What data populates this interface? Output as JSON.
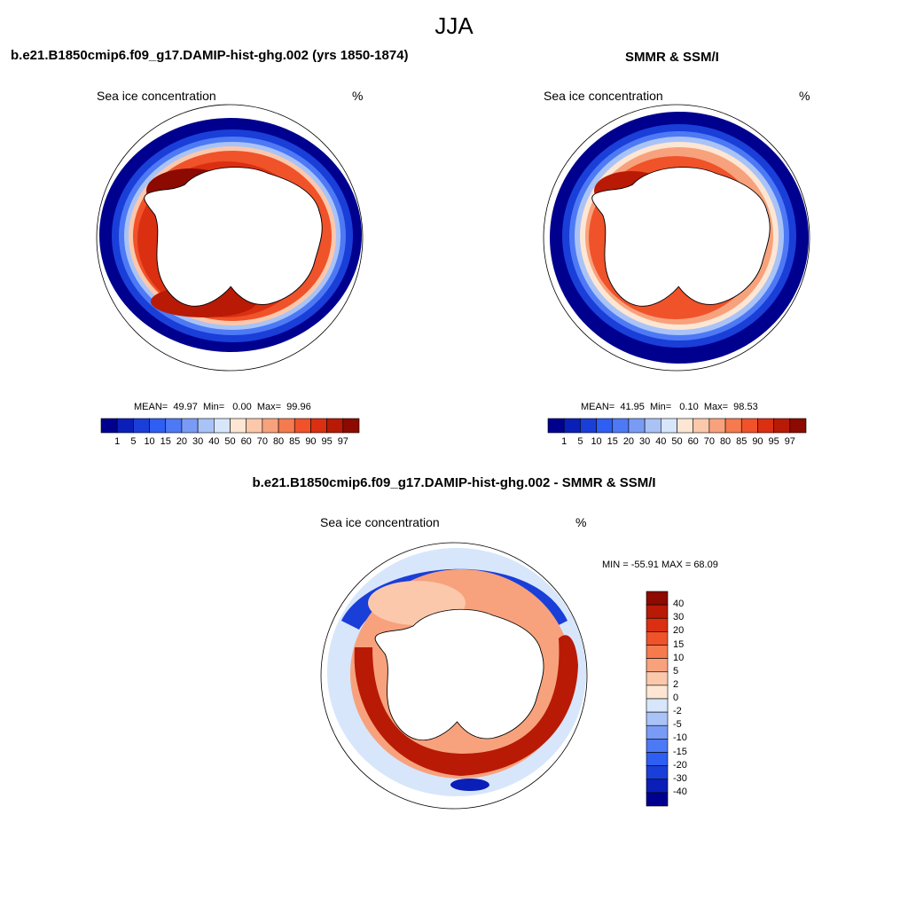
{
  "title": "JJA",
  "panels": [
    {
      "id": "model",
      "heading": "b.e21.B1850cmip6.f09_g17.DAMIP-hist-ghg.002 (yrs 1850-1874)",
      "variable": "Sea ice concentration",
      "units": "%",
      "stats": {
        "mean": "49.97",
        "min": "0.00",
        "max": "99.96"
      }
    },
    {
      "id": "obs",
      "heading": "SMMR & SSM/I",
      "variable": "Sea ice concentration",
      "units": "%",
      "stats": {
        "mean": "41.95",
        "min": "0.10",
        "max": "98.53"
      }
    },
    {
      "id": "diff",
      "heading": "b.e21.B1850cmip6.f09_g17.DAMIP-hist-ghg.002 - SMMR & SSM/I",
      "variable": "Sea ice concentration",
      "units": "%",
      "minmax_text": "MIN = -55.91 MAX =  68.09"
    }
  ],
  "colorbar_abs": {
    "levels": [
      "1",
      "5",
      "10",
      "15",
      "20",
      "30",
      "40",
      "50",
      "60",
      "70",
      "80",
      "85",
      "90",
      "95",
      "97"
    ],
    "colors": [
      "#00008f",
      "#0a1fb8",
      "#1a3ed8",
      "#2e5ef2",
      "#4d79f5",
      "#7a9bf5",
      "#a9c3f7",
      "#d7e6fb",
      "#fde6d3",
      "#fbc8ac",
      "#f7a27d",
      "#f57a4e",
      "#f0522a",
      "#db2f12",
      "#b81a06",
      "#8c0a00"
    ]
  },
  "colorbar_diff": {
    "levels": [
      "40",
      "30",
      "20",
      "15",
      "10",
      "5",
      "2",
      "0",
      "-2",
      "-5",
      "-10",
      "-15",
      "-20",
      "-30",
      "-40"
    ],
    "colors": [
      "#8c0a00",
      "#b81a06",
      "#db2f12",
      "#f0522a",
      "#f57a4e",
      "#f7a27d",
      "#fbc8ac",
      "#fde6d3",
      "#d7e6fb",
      "#a9c3f7",
      "#7a9bf5",
      "#4d79f5",
      "#2e5ef2",
      "#1a3ed8",
      "#0a1fb8",
      "#00008f"
    ]
  }
}
